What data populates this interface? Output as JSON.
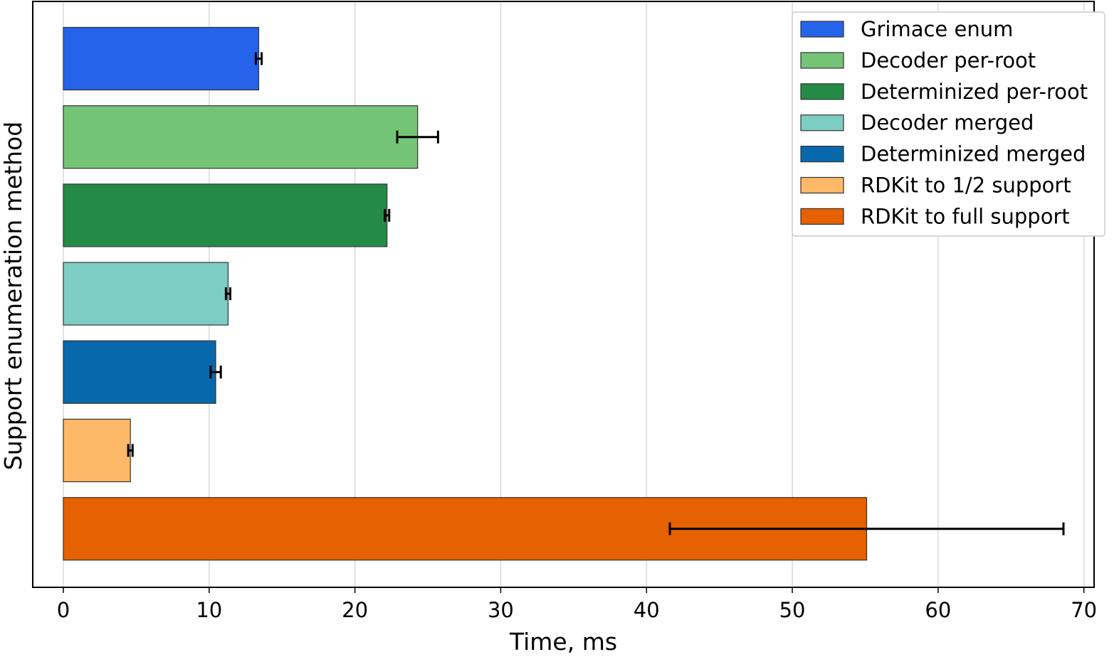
{
  "chart_data": {
    "type": "bar",
    "orientation": "horizontal",
    "xlabel": "Time, ms",
    "ylabel": "Support enumeration method",
    "xlim": [
      -2.1,
      70.7
    ],
    "xticks": [
      0,
      10,
      20,
      30,
      40,
      50,
      60,
      70
    ],
    "grid": "vertical",
    "legend_position": "top-right",
    "series": [
      {
        "name": "Grimace enum",
        "value": 13.4,
        "error": [
          13.2,
          13.6
        ],
        "color": "#2563eb"
      },
      {
        "name": "Decoder per-root",
        "value": 24.3,
        "error": [
          22.9,
          25.7
        ],
        "color": "#74c476"
      },
      {
        "name": "Determinized per-root",
        "value": 22.2,
        "error": [
          22.05,
          22.35
        ],
        "color": "#238b45"
      },
      {
        "name": "Decoder merged",
        "value": 11.3,
        "error": [
          11.15,
          11.45
        ],
        "color": "#7ecdc4"
      },
      {
        "name": "Determinized merged",
        "value": 10.45,
        "error": [
          10.1,
          10.8
        ],
        "color": "#0868ac"
      },
      {
        "name": "RDKit to 1/2 support",
        "value": 4.6,
        "error": [
          4.45,
          4.75
        ],
        "color": "#fdb868"
      },
      {
        "name": "RDKit to full support",
        "value": 55.1,
        "error": [
          41.6,
          68.6
        ],
        "color": "#e66101"
      }
    ]
  }
}
